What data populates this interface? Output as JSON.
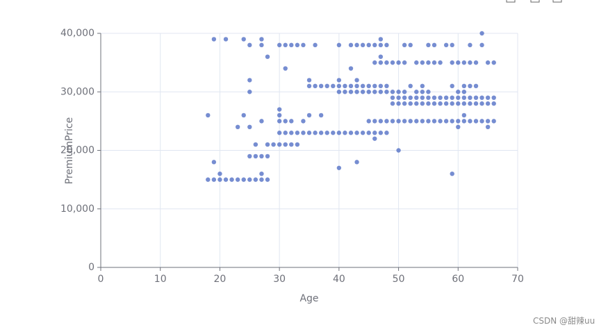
{
  "chart_data": {
    "type": "scatter",
    "x_label": "Age",
    "y_label": "PremiumPrice",
    "color": "#5470c6",
    "grid": true,
    "xlim": [
      0,
      70
    ],
    "xticks": [
      0,
      10,
      20,
      30,
      40,
      50,
      60,
      70
    ],
    "ylim": [
      0,
      40000
    ],
    "yticks": [
      0,
      {
        "value": 10000,
        "label": "10,000"
      },
      {
        "value": 20000,
        "label": "20,000"
      },
      {
        "value": 30000,
        "label": "30,000"
      },
      {
        "value": 40000,
        "label": "40,000"
      }
    ],
    "x": [
      18,
      19,
      20,
      21,
      22,
      23,
      24,
      25,
      26,
      27,
      28,
      64,
      19,
      21,
      24,
      27,
      47,
      25,
      27,
      30,
      31,
      32,
      33,
      34,
      36,
      40,
      42,
      43,
      44,
      45,
      46,
      47,
      48,
      51,
      52,
      55,
      56,
      58,
      59,
      62,
      64,
      28,
      47,
      46,
      47,
      48,
      49,
      50,
      51,
      53,
      54,
      55,
      56,
      57,
      59,
      60,
      61,
      62,
      63,
      65,
      66,
      31,
      42,
      25,
      35,
      40,
      43,
      35,
      36,
      37,
      38,
      39,
      40,
      41,
      42,
      43,
      44,
      45,
      46,
      47,
      48,
      52,
      54,
      59,
      61,
      62,
      63,
      25,
      40,
      41,
      42,
      43,
      44,
      45,
      46,
      47,
      48,
      49,
      50,
      51,
      53,
      54,
      55,
      60,
      61,
      49,
      50,
      51,
      52,
      53,
      54,
      55,
      56,
      57,
      58,
      59,
      60,
      61,
      62,
      63,
      64,
      65,
      66,
      49,
      50,
      51,
      52,
      53,
      54,
      55,
      56,
      57,
      58,
      59,
      60,
      61,
      62,
      63,
      64,
      65,
      66,
      30,
      18,
      24,
      30,
      35,
      37,
      61,
      27,
      30,
      31,
      32,
      34,
      45,
      46,
      47,
      48,
      49,
      50,
      51,
      52,
      53,
      54,
      55,
      56,
      57,
      58,
      59,
      60,
      61,
      62,
      63,
      64,
      65,
      66,
      23,
      25,
      60,
      65,
      30,
      31,
      32,
      33,
      34,
      35,
      36,
      37,
      38,
      39,
      40,
      41,
      42,
      43,
      44,
      45,
      46,
      47,
      48,
      46,
      26,
      28,
      29,
      30,
      31,
      32,
      33,
      50,
      25,
      26,
      27,
      28,
      19,
      43,
      40,
      20,
      27,
      59
    ],
    "values": [
      15000,
      15000,
      15000,
      15000,
      15000,
      15000,
      15000,
      15000,
      15000,
      15000,
      15000,
      40000,
      39000,
      39000,
      39000,
      39000,
      39000,
      38000,
      38000,
      38000,
      38000,
      38000,
      38000,
      38000,
      38000,
      38000,
      38000,
      38000,
      38000,
      38000,
      38000,
      38000,
      38000,
      38000,
      38000,
      38000,
      38000,
      38000,
      38000,
      38000,
      38000,
      36000,
      36000,
      35000,
      35000,
      35000,
      35000,
      35000,
      35000,
      35000,
      35000,
      35000,
      35000,
      35000,
      35000,
      35000,
      35000,
      35000,
      35000,
      35000,
      35000,
      34000,
      34000,
      32000,
      32000,
      32000,
      32000,
      31000,
      31000,
      31000,
      31000,
      31000,
      31000,
      31000,
      31000,
      31000,
      31000,
      31000,
      31000,
      31000,
      31000,
      31000,
      31000,
      31000,
      31000,
      31000,
      31000,
      30000,
      30000,
      30000,
      30000,
      30000,
      30000,
      30000,
      30000,
      30000,
      30000,
      30000,
      30000,
      30000,
      30000,
      30000,
      30000,
      30000,
      30000,
      29000,
      29000,
      29000,
      29000,
      29000,
      29000,
      29000,
      29000,
      29000,
      29000,
      29000,
      29000,
      29000,
      29000,
      29000,
      29000,
      29000,
      29000,
      28000,
      28000,
      28000,
      28000,
      28000,
      28000,
      28000,
      28000,
      28000,
      28000,
      28000,
      28000,
      28000,
      28000,
      28000,
      28000,
      28000,
      28000,
      27000,
      26000,
      26000,
      26000,
      26000,
      26000,
      26000,
      25000,
      25000,
      25000,
      25000,
      25000,
      25000,
      25000,
      25000,
      25000,
      25000,
      25000,
      25000,
      25000,
      25000,
      25000,
      25000,
      25000,
      25000,
      25000,
      25000,
      25000,
      25000,
      25000,
      25000,
      25000,
      25000,
      25000,
      24000,
      24000,
      24000,
      24000,
      23000,
      23000,
      23000,
      23000,
      23000,
      23000,
      23000,
      23000,
      23000,
      23000,
      23000,
      23000,
      23000,
      23000,
      23000,
      23000,
      23000,
      23000,
      23000,
      22000,
      21000,
      21000,
      21000,
      21000,
      21000,
      21000,
      21000,
      20000,
      19000,
      19000,
      19000,
      19000,
      18000,
      18000,
      17000,
      16000,
      16000,
      16000
    ]
  },
  "watermark": "CSDN @甜辣uu"
}
